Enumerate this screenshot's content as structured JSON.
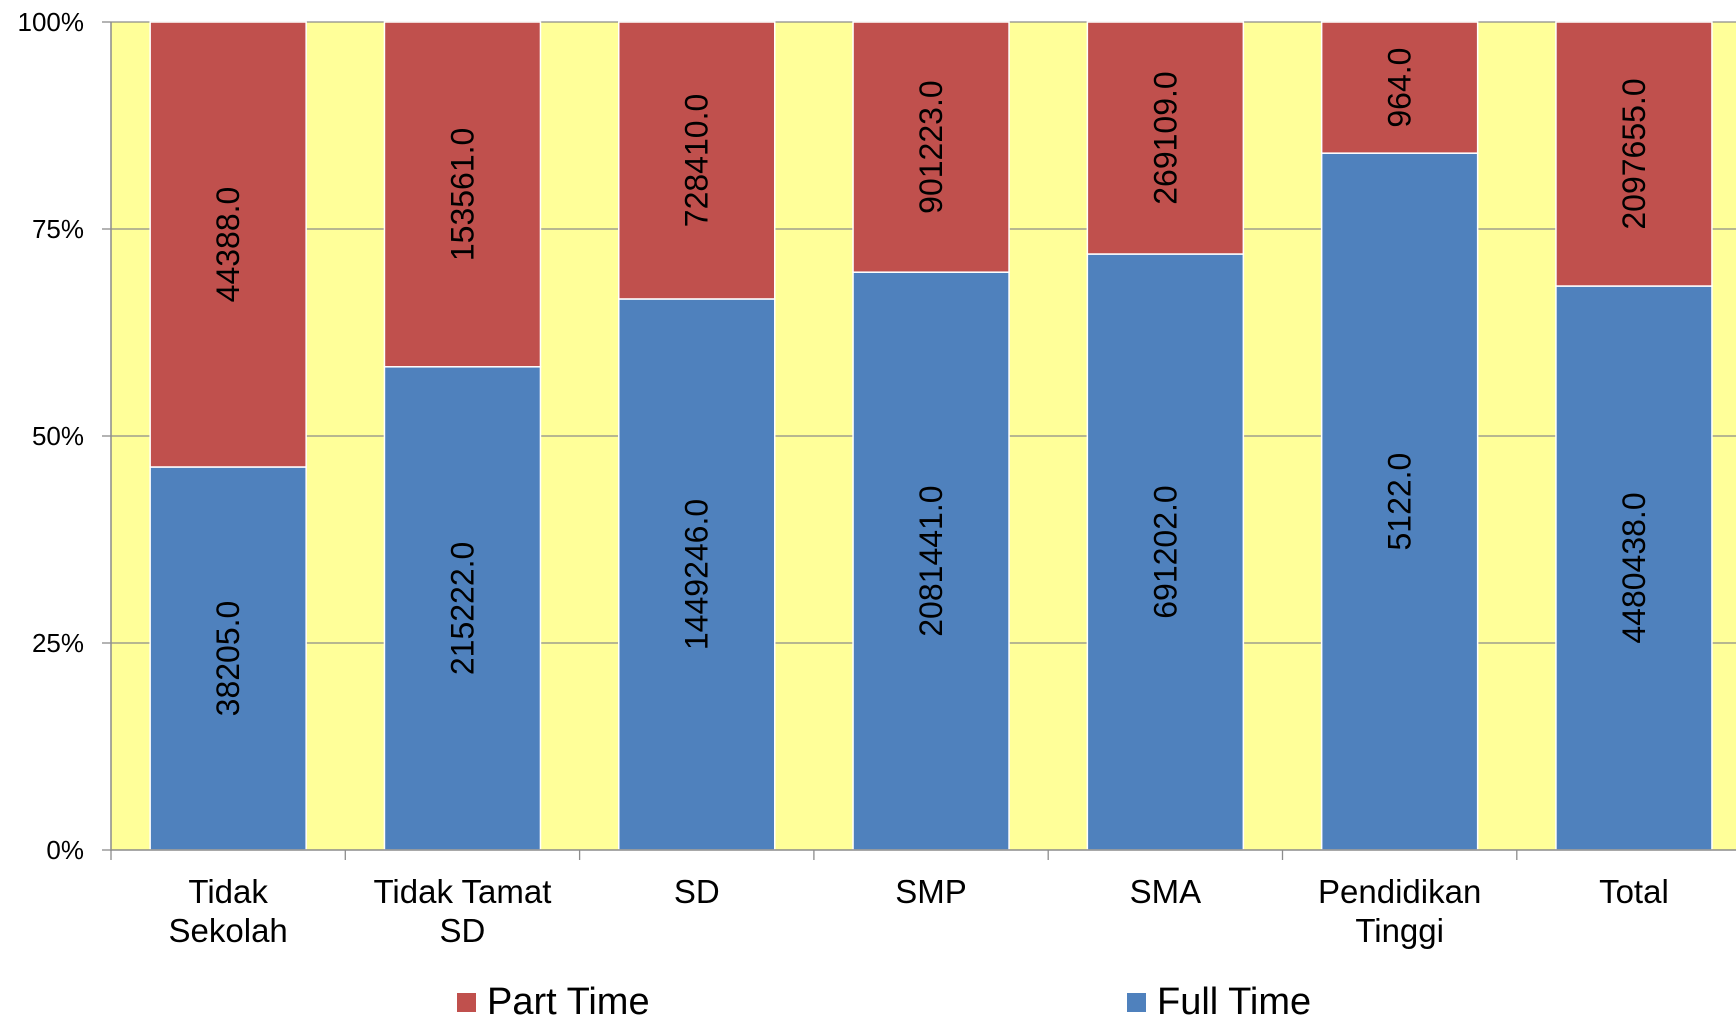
{
  "chart_data": {
    "type": "bar",
    "stacking": "percent",
    "categories": [
      "Tidak Sekolah",
      "Tidak Tamat SD",
      "SD",
      "SMP",
      "SMA",
      "Pendidikan Tinggi",
      "Total"
    ],
    "category_lines": [
      [
        "Tidak",
        "Sekolah"
      ],
      [
        "Tidak Tamat",
        "SD"
      ],
      [
        "SD"
      ],
      [
        "SMP"
      ],
      [
        "SMA"
      ],
      [
        "Pendidikan",
        "Tinggi"
      ],
      [
        "Total"
      ]
    ],
    "series": [
      {
        "name": "Full Time",
        "color": "#4f81bd",
        "values": [
          38205.0,
          215222.0,
          1449246.0,
          2081441.0,
          691202.0,
          5122.0,
          4480438.0
        ]
      },
      {
        "name": "Part Time",
        "color": "#c0504d",
        "values": [
          44388.0,
          153561.0,
          728410.0,
          901223.0,
          269109.0,
          964.0,
          2097655.0
        ]
      }
    ],
    "data_labels": {
      "Full Time": [
        "38205.0",
        "215222.0",
        "1449246.0",
        "2081441.0",
        "691202.0",
        "5122.0",
        "4480438.0"
      ],
      "Part Time": [
        "44388.0",
        "153561.0",
        "728410.0",
        "901223.0",
        "269109.0",
        "964.0",
        "2097655.0"
      ]
    },
    "y_ticks": [
      "0%",
      "25%",
      "50%",
      "75%",
      "100%"
    ],
    "ylim": [
      0,
      100
    ],
    "grid": true,
    "legend": {
      "placement": "bottom",
      "order": [
        "Part Time",
        "Full Time"
      ]
    },
    "plot_background": "#ffff99",
    "title": "",
    "xlabel": "",
    "ylabel": ""
  }
}
